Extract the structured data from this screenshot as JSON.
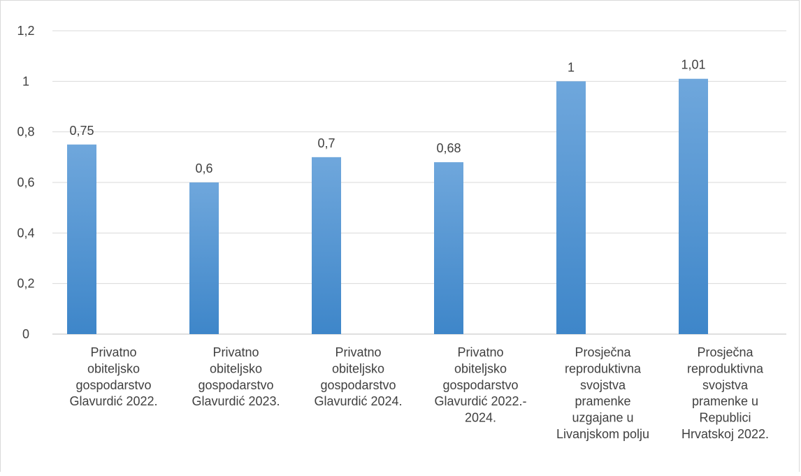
{
  "chart_data": {
    "type": "bar",
    "title": "",
    "xlabel": "",
    "ylabel": "",
    "ylim": [
      0,
      1.2
    ],
    "yticks": [
      "0",
      "0,2",
      "0,4",
      "0,6",
      "0,8",
      "1",
      "1,2"
    ],
    "grid": true,
    "legend": "none",
    "bar_color": "#5B9BD5",
    "categories": [
      [
        "Privatno",
        "obiteljsko",
        "gospodarstvo",
        "Glavurdić 2022."
      ],
      [
        "Privatno",
        "obiteljsko",
        "gospodarstvo",
        "Glavurdić 2023."
      ],
      [
        "Privatno",
        "obiteljsko",
        "gospodarstvo",
        "Glavurdić 2024."
      ],
      [
        "Privatno",
        "obiteljsko",
        "gospodarstvo",
        "Glavurdić 2022.-",
        "2024."
      ],
      [
        "Prosječna",
        "reproduktivna",
        "svojstva",
        "pramenke",
        "uzgajane u",
        "Livanjskom polju"
      ],
      [
        "Prosječna",
        "reproduktivna",
        "svojstva",
        "pramenke u",
        "Republici",
        "Hrvatskoj 2022."
      ]
    ],
    "values": [
      0.75,
      0.6,
      0.7,
      0.68,
      1,
      1.01
    ],
    "data_labels": [
      "0,75",
      "0,6",
      "0,7",
      "0,68",
      "1",
      "1,01"
    ]
  }
}
